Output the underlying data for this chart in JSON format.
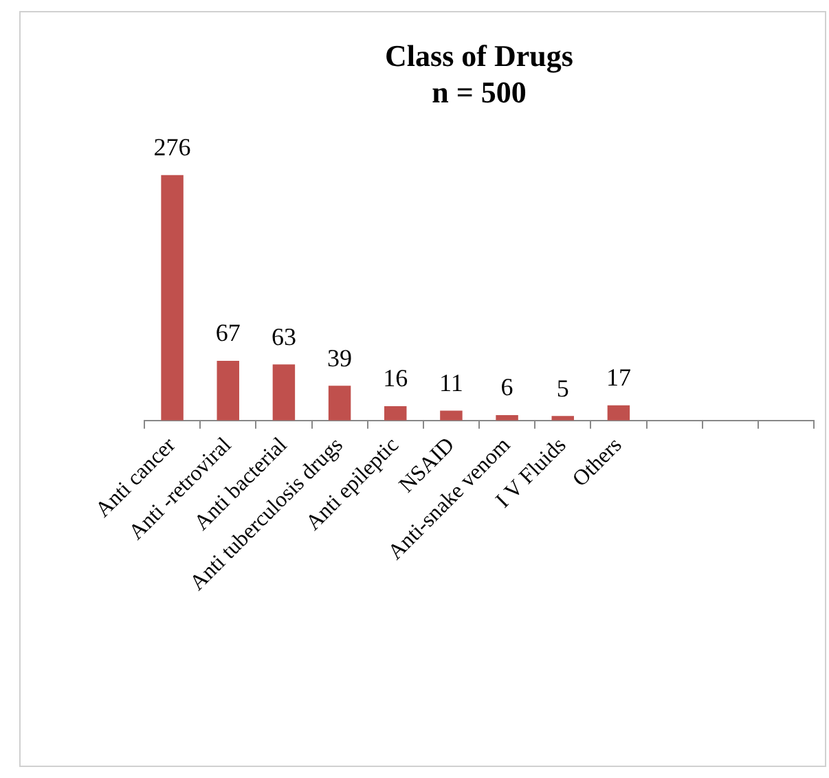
{
  "chart_data": {
    "type": "bar",
    "title": "Class of Drugs",
    "subtitle": "n = 500",
    "categories": [
      "Anti cancer",
      "Anti -retroviral",
      "Anti bacterial",
      "Anti tuberculosis drugs",
      "Anti epileptic",
      "NSAID",
      "Anti-snake venom",
      "I V Fluids",
      "Others",
      null,
      null,
      null
    ],
    "values": [
      276,
      67,
      63,
      39,
      16,
      11,
      6,
      5,
      17,
      null,
      null,
      null
    ],
    "color": "#c0504d",
    "data_labels": true,
    "legend": false
  }
}
